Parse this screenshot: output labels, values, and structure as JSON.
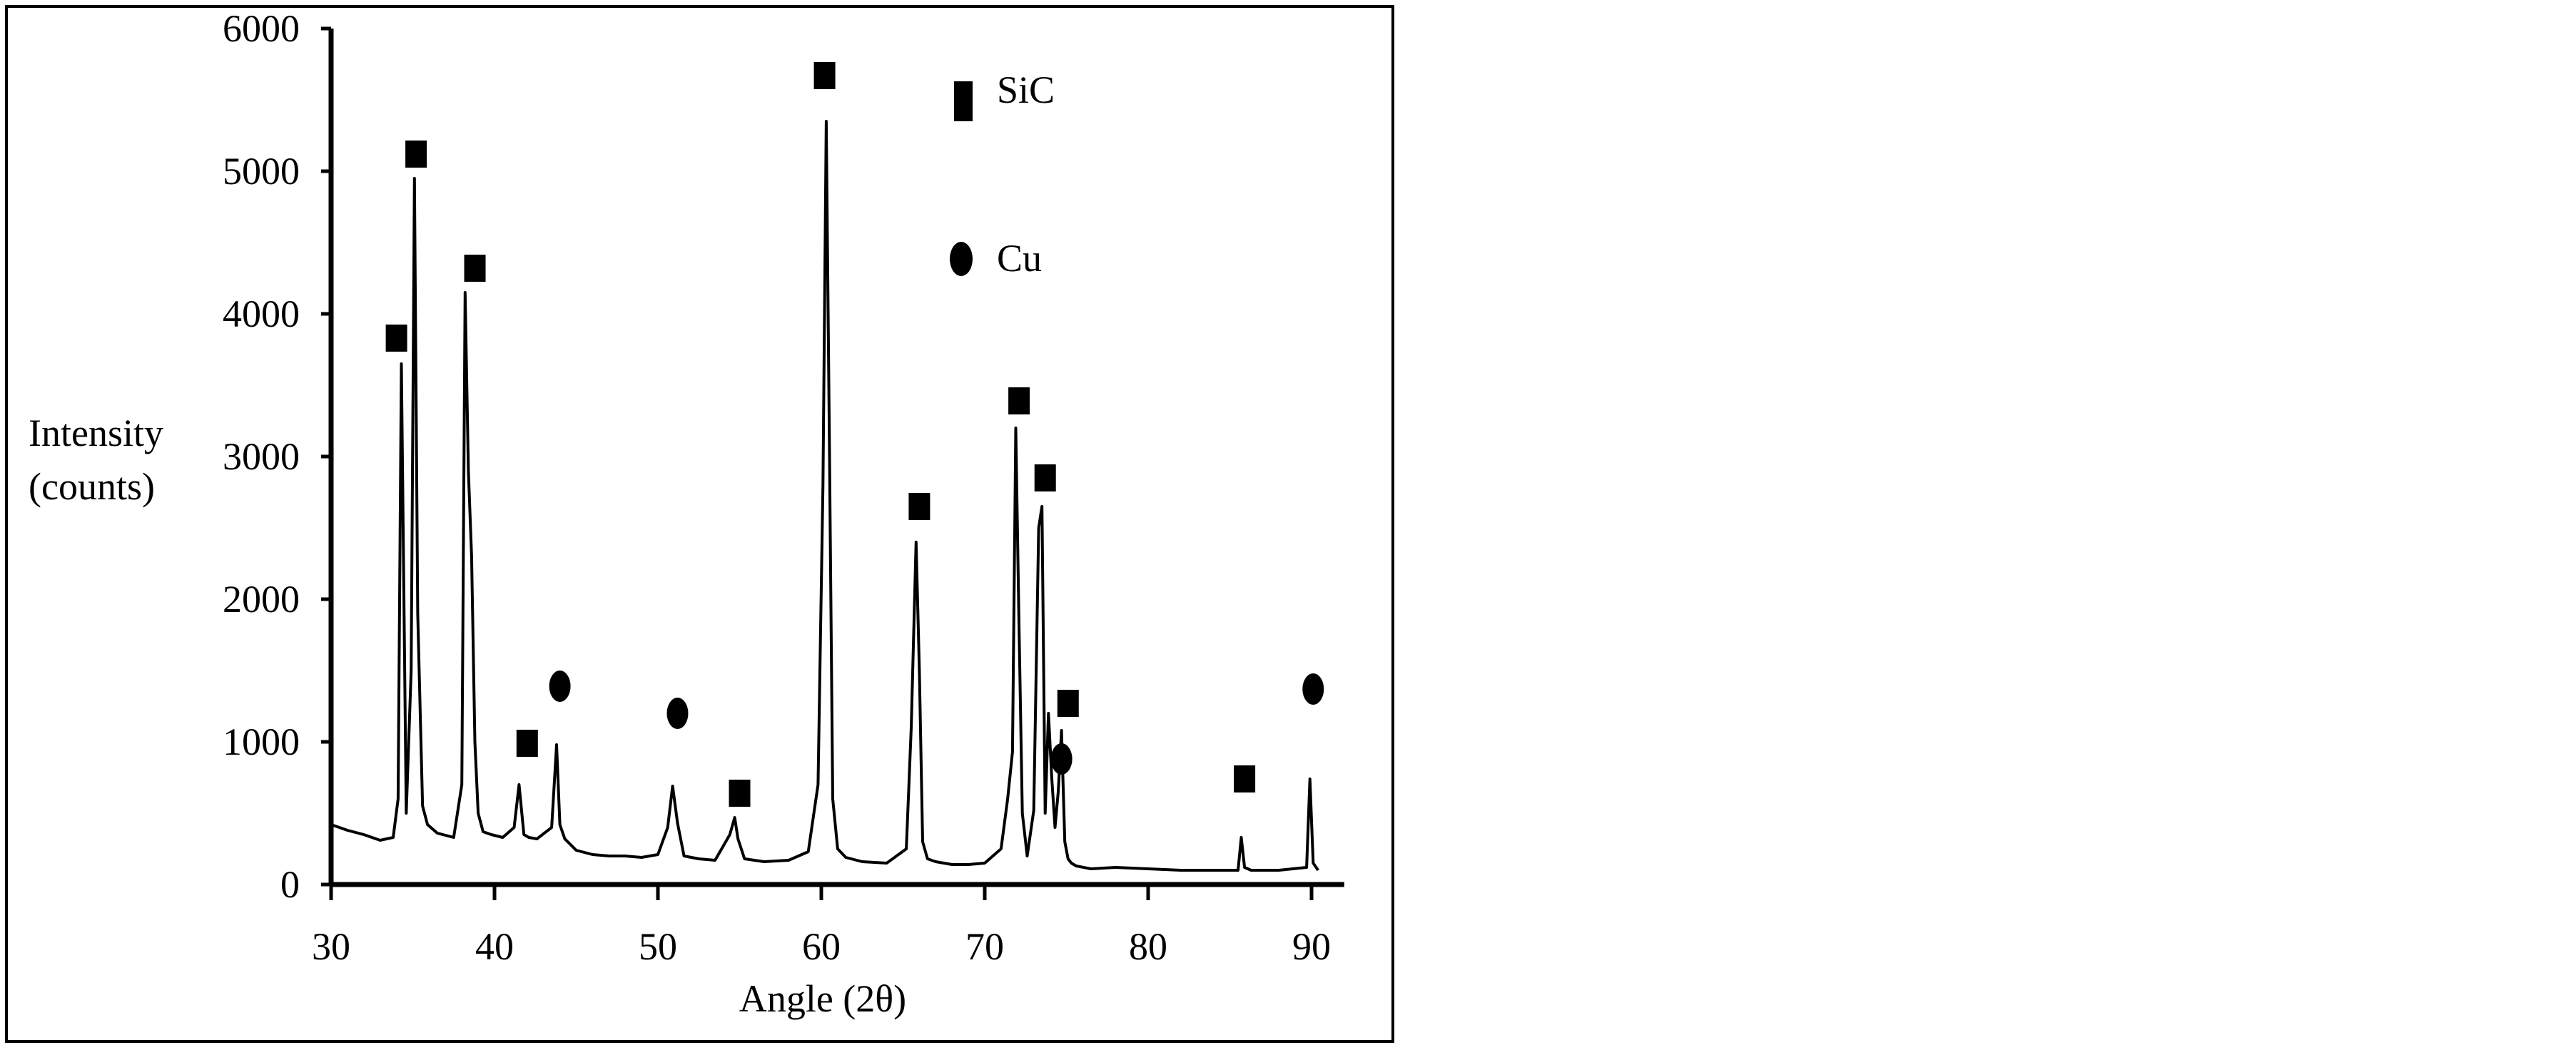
{
  "chart_data": {
    "type": "line",
    "xlabel": "Angle (2θ)",
    "ylabel_lines": [
      "Intensity",
      "(counts)"
    ],
    "xlim": [
      30,
      92
    ],
    "ylim": [
      0,
      6000
    ],
    "x_ticks": [
      30,
      40,
      50,
      60,
      70,
      80,
      90
    ],
    "y_ticks": [
      0,
      1000,
      2000,
      3000,
      4000,
      5000,
      6000
    ],
    "grid": false,
    "legend_position": "top-right",
    "legend": [
      {
        "marker": "square",
        "label": "SiC"
      },
      {
        "marker": "circle",
        "label": "Cu"
      }
    ],
    "series": [
      {
        "x": [
          30,
          31,
          32,
          33,
          33.8,
          34.1,
          34.3,
          34.6,
          34.9,
          35.1,
          35.3,
          35.6,
          35.9,
          36.5,
          37.5,
          38.0,
          38.2,
          38.4,
          38.6,
          38.8,
          39.0,
          39.3,
          39.8,
          40.5,
          41.2,
          41.5,
          41.8,
          42.1,
          42.6,
          43.5,
          43.8,
          44.0,
          44.3,
          45,
          46,
          47,
          48,
          49,
          50,
          50.6,
          50.9,
          51.2,
          51.6,
          52.5,
          53.5,
          54.4,
          54.7,
          54.9,
          55.3,
          56.5,
          58,
          59.2,
          59.8,
          60.1,
          60.3,
          60.5,
          60.7,
          61.0,
          61.5,
          62.5,
          64,
          65.2,
          65.5,
          65.8,
          66.0,
          66.2,
          66.5,
          67,
          68,
          69,
          70,
          71.0,
          71.4,
          71.7,
          71.9,
          72.1,
          72.3,
          72.6,
          73.0,
          73.3,
          73.5,
          73.7,
          73.9,
          74.1,
          74.3,
          74.5,
          74.7,
          74.9,
          75.1,
          75.3,
          75.6,
          76.5,
          78,
          80,
          82,
          84,
          85.5,
          85.7,
          85.9,
          86.3,
          88,
          89.7,
          89.9,
          90.1,
          90.4
        ],
        "y": [
          420,
          380,
          350,
          310,
          330,
          600,
          3650,
          500,
          1500,
          4950,
          1900,
          550,
          420,
          360,
          330,
          700,
          4150,
          2900,
          2300,
          1000,
          500,
          370,
          350,
          330,
          400,
          700,
          350,
          330,
          320,
          400,
          980,
          420,
          320,
          240,
          210,
          200,
          200,
          190,
          210,
          400,
          690,
          430,
          200,
          180,
          170,
          350,
          470,
          320,
          180,
          160,
          170,
          230,
          700,
          2800,
          5350,
          3000,
          600,
          250,
          190,
          160,
          150,
          250,
          1100,
          2400,
          1500,
          300,
          180,
          160,
          140,
          140,
          150,
          250,
          600,
          930,
          3200,
          1800,
          500,
          200,
          520,
          2500,
          2650,
          500,
          1200,
          750,
          400,
          650,
          1080,
          300,
          180,
          150,
          130,
          110,
          120,
          110,
          100,
          100,
          100,
          330,
          120,
          100,
          100,
          120,
          740,
          150,
          100
        ]
      }
    ],
    "peak_markers": [
      {
        "x": 34.0,
        "y": 3830,
        "marker": "square"
      },
      {
        "x": 35.2,
        "y": 5120,
        "marker": "square"
      },
      {
        "x": 38.8,
        "y": 4320,
        "marker": "square"
      },
      {
        "x": 42.0,
        "y": 990,
        "marker": "square"
      },
      {
        "x": 44.0,
        "y": 1390,
        "marker": "circle"
      },
      {
        "x": 51.2,
        "y": 1200,
        "marker": "circle"
      },
      {
        "x": 55.0,
        "y": 640,
        "marker": "square"
      },
      {
        "x": 60.2,
        "y": 5670,
        "marker": "square"
      },
      {
        "x": 66.0,
        "y": 2650,
        "marker": "square"
      },
      {
        "x": 72.1,
        "y": 3390,
        "marker": "square"
      },
      {
        "x": 73.7,
        "y": 2850,
        "marker": "square"
      },
      {
        "x": 75.1,
        "y": 1270,
        "marker": "square"
      },
      {
        "x": 74.7,
        "y": 880,
        "marker": "circle"
      },
      {
        "x": 85.9,
        "y": 740,
        "marker": "square"
      },
      {
        "x": 90.1,
        "y": 1370,
        "marker": "circle"
      }
    ],
    "colors": {
      "line": "#000000",
      "axis": "#000000",
      "marker": "#000000"
    }
  }
}
